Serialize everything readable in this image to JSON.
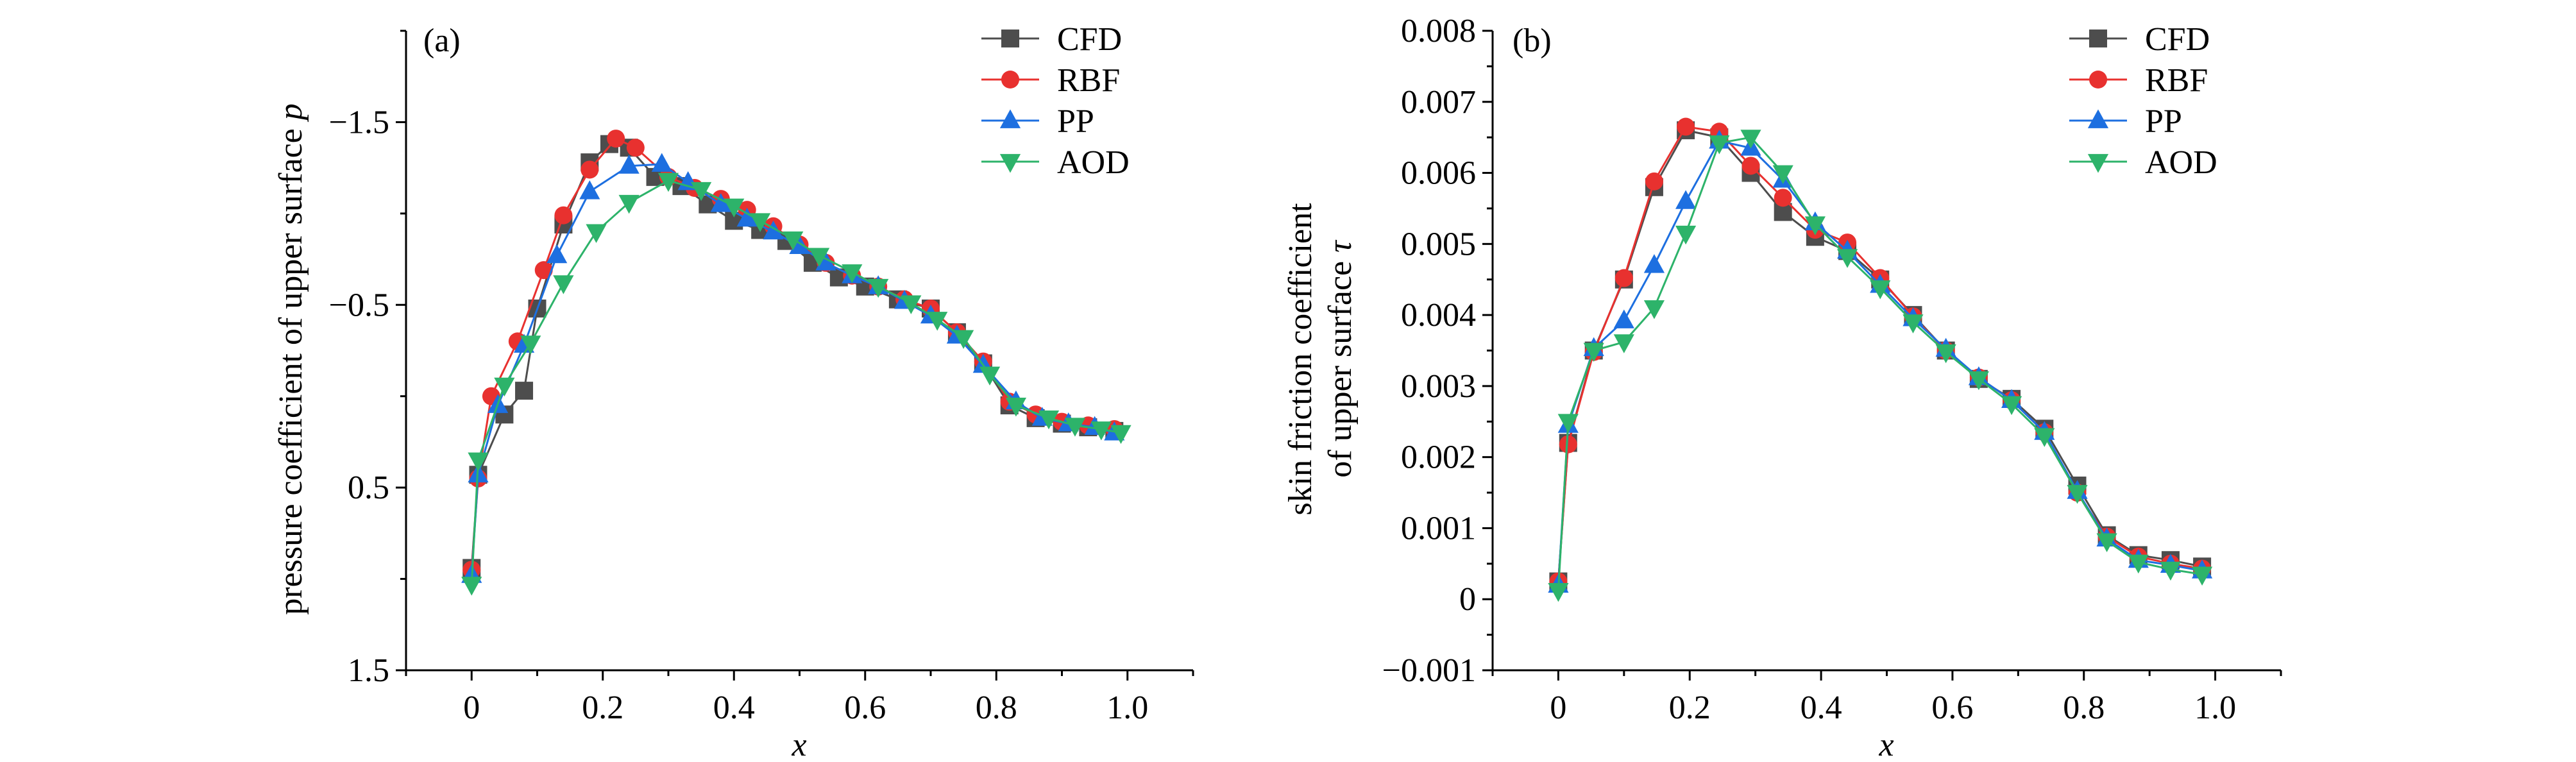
{
  "colors": {
    "CFD": "#4d4d4d",
    "RBF": "#e8312f",
    "PP": "#1d6fe0",
    "AOD": "#2db36a"
  },
  "chart_data": [
    {
      "type": "line",
      "panel_label": "(a)",
      "xlabel": "x",
      "ylabel": "pressure coefficient of upper surface p",
      "ylabel_main": "pressure coefficient of upper surface ",
      "ylabel_var": "p",
      "xlim": [
        -0.1,
        1.1
      ],
      "ylim": [
        1.5,
        -2.0
      ],
      "y_reversed": true,
      "xticks": [
        "0",
        "0.2",
        "0.4",
        "0.6",
        "0.8",
        "1.0"
      ],
      "xtick_values": [
        0,
        0.2,
        0.4,
        0.6,
        0.8,
        1.0
      ],
      "yticks": [
        "1.5",
        "0.5",
        "−0.5",
        "−1.5"
      ],
      "ytick_values": [
        1.5,
        0.5,
        -0.5,
        -1.5
      ],
      "y_minor_step": 0.5,
      "x_minor_step": 0.1,
      "legend_position": "top-right",
      "series": [
        {
          "name": "CFD",
          "marker": "square",
          "x": [
            0,
            0.01,
            0.05,
            0.08,
            0.1,
            0.14,
            0.18,
            0.21,
            0.24,
            0.28,
            0.32,
            0.36,
            0.4,
            0.44,
            0.48,
            0.52,
            0.56,
            0.6,
            0.65,
            0.7,
            0.74,
            0.78,
            0.82,
            0.86,
            0.9,
            0.94,
            0.98
          ],
          "y": [
            0.94,
            0.43,
            0.1,
            -0.03,
            -0.48,
            -0.94,
            -1.28,
            -1.38,
            -1.36,
            -1.2,
            -1.15,
            -1.05,
            -0.96,
            -0.91,
            -0.85,
            -0.73,
            -0.65,
            -0.6,
            -0.53,
            -0.48,
            -0.35,
            -0.18,
            0.05,
            0.12,
            0.15,
            0.17,
            0.19
          ]
        },
        {
          "name": "RBF",
          "marker": "circle",
          "x": [
            0,
            0.01,
            0.03,
            0.07,
            0.11,
            0.14,
            0.18,
            0.22,
            0.25,
            0.3,
            0.34,
            0.38,
            0.42,
            0.46,
            0.5,
            0.54,
            0.58,
            0.62,
            0.66,
            0.7,
            0.74,
            0.78,
            0.82,
            0.86,
            0.9,
            0.94,
            0.98
          ],
          "y": [
            0.95,
            0.45,
            0.0,
            -0.3,
            -0.69,
            -0.99,
            -1.24,
            -1.41,
            -1.36,
            -1.2,
            -1.14,
            -1.08,
            -1.02,
            -0.93,
            -0.83,
            -0.73,
            -0.66,
            -0.6,
            -0.53,
            -0.48,
            -0.35,
            -0.19,
            0.03,
            0.1,
            0.14,
            0.16,
            0.18
          ]
        },
        {
          "name": "PP",
          "marker": "triangle-up",
          "x": [
            0,
            0.01,
            0.04,
            0.08,
            0.13,
            0.18,
            0.24,
            0.29,
            0.33,
            0.38,
            0.42,
            0.46,
            0.5,
            0.54,
            0.58,
            0.62,
            0.66,
            0.7,
            0.74,
            0.78,
            0.83,
            0.87,
            0.91,
            0.95,
            0.98
          ],
          "y": [
            0.98,
            0.43,
            0.05,
            -0.28,
            -0.77,
            -1.12,
            -1.26,
            -1.27,
            -1.17,
            -1.05,
            -0.97,
            -0.9,
            -0.82,
            -0.73,
            -0.66,
            -0.6,
            -0.52,
            -0.44,
            -0.33,
            -0.17,
            0.03,
            0.12,
            0.15,
            0.17,
            0.2
          ]
        },
        {
          "name": "AOD",
          "marker": "triangle-down",
          "x": [
            0,
            0.01,
            0.05,
            0.09,
            0.14,
            0.19,
            0.24,
            0.3,
            0.35,
            0.4,
            0.44,
            0.49,
            0.53,
            0.58,
            0.62,
            0.67,
            0.71,
            0.75,
            0.79,
            0.83,
            0.88,
            0.92,
            0.96,
            0.99
          ],
          "y": [
            1.03,
            0.35,
            -0.06,
            -0.29,
            -0.62,
            -0.9,
            -1.06,
            -1.18,
            -1.13,
            -1.04,
            -0.96,
            -0.86,
            -0.77,
            -0.68,
            -0.6,
            -0.51,
            -0.42,
            -0.32,
            -0.12,
            0.05,
            0.12,
            0.16,
            0.18,
            0.2
          ]
        }
      ]
    },
    {
      "type": "line",
      "panel_label": "(b)",
      "xlabel": "x",
      "ylabel_line1": "skin friction coefficient",
      "ylabel_line2_main": "of upper surface ",
      "ylabel_line2_var": "τ",
      "xlim": [
        -0.1,
        1.1
      ],
      "ylim": [
        -0.001,
        0.008
      ],
      "xticks": [
        "0",
        "0.2",
        "0.4",
        "0.6",
        "0.8",
        "1.0"
      ],
      "xtick_values": [
        0,
        0.2,
        0.4,
        0.6,
        0.8,
        1.0
      ],
      "yticks": [
        "−0.001",
        "0",
        "0.001",
        "0.002",
        "0.003",
        "0.004",
        "0.005",
        "0.006",
        "0.007",
        "0.008"
      ],
      "ytick_values": [
        -0.001,
        0,
        0.001,
        0.002,
        0.003,
        0.004,
        0.005,
        0.006,
        0.007,
        0.008
      ],
      "y_minor_step": 0.0005,
      "x_minor_step": 0.1,
      "legend_position": "top-right",
      "series": [
        {
          "name": "CFD",
          "marker": "square",
          "x": [
            0,
            0.015,
            0.054,
            0.1,
            0.146,
            0.194,
            0.245,
            0.293,
            0.342,
            0.391,
            0.44,
            0.49,
            0.54,
            0.59,
            0.64,
            0.69,
            0.74,
            0.79,
            0.835,
            0.883,
            0.932,
            0.98
          ],
          "y": [
            0.00025,
            0.0022,
            0.0035,
            0.0045,
            0.0058,
            0.0066,
            0.0065,
            0.006,
            0.00545,
            0.0051,
            0.0049,
            0.0045,
            0.004,
            0.0035,
            0.0031,
            0.00282,
            0.0024,
            0.0016,
            0.0009,
            0.00062,
            0.00055,
            0.00046
          ]
        },
        {
          "name": "RBF",
          "marker": "circle",
          "x": [
            0,
            0.015,
            0.054,
            0.1,
            0.146,
            0.194,
            0.245,
            0.293,
            0.342,
            0.391,
            0.44,
            0.49,
            0.54,
            0.59,
            0.64,
            0.69,
            0.74,
            0.79,
            0.835,
            0.883,
            0.932,
            0.98
          ],
          "y": [
            0.00025,
            0.00218,
            0.00348,
            0.00452,
            0.00588,
            0.00665,
            0.00658,
            0.0061,
            0.00565,
            0.0052,
            0.00502,
            0.00452,
            0.00398,
            0.0035,
            0.00312,
            0.0028,
            0.00235,
            0.0015,
            0.00088,
            0.0006,
            0.0005,
            0.00043
          ]
        },
        {
          "name": "PP",
          "marker": "triangle-up",
          "x": [
            0,
            0.015,
            0.054,
            0.1,
            0.146,
            0.194,
            0.245,
            0.293,
            0.342,
            0.391,
            0.44,
            0.49,
            0.54,
            0.59,
            0.64,
            0.69,
            0.74,
            0.79,
            0.835,
            0.883,
            0.932,
            0.98
          ],
          "y": [
            0.0002,
            0.00245,
            0.00353,
            0.00392,
            0.0047,
            0.0056,
            0.00645,
            0.00635,
            0.0059,
            0.0053,
            0.0049,
            0.00442,
            0.00395,
            0.00352,
            0.00312,
            0.0028,
            0.00235,
            0.00152,
            0.00085,
            0.00055,
            0.00048,
            0.0004
          ]
        },
        {
          "name": "AOD",
          "marker": "triangle-down",
          "x": [
            0,
            0.015,
            0.054,
            0.1,
            0.146,
            0.194,
            0.245,
            0.293,
            0.342,
            0.391,
            0.44,
            0.49,
            0.54,
            0.59,
            0.64,
            0.69,
            0.74,
            0.79,
            0.835,
            0.883,
            0.932,
            0.98
          ],
          "y": [
            0.00012,
            0.0025,
            0.0035,
            0.00362,
            0.0041,
            0.00515,
            0.00642,
            0.0065,
            0.006,
            0.00528,
            0.00482,
            0.00438,
            0.0039,
            0.00348,
            0.0031,
            0.00275,
            0.0023,
            0.0015,
            0.00082,
            0.00052,
            0.00042,
            0.00035
          ]
        }
      ]
    }
  ]
}
